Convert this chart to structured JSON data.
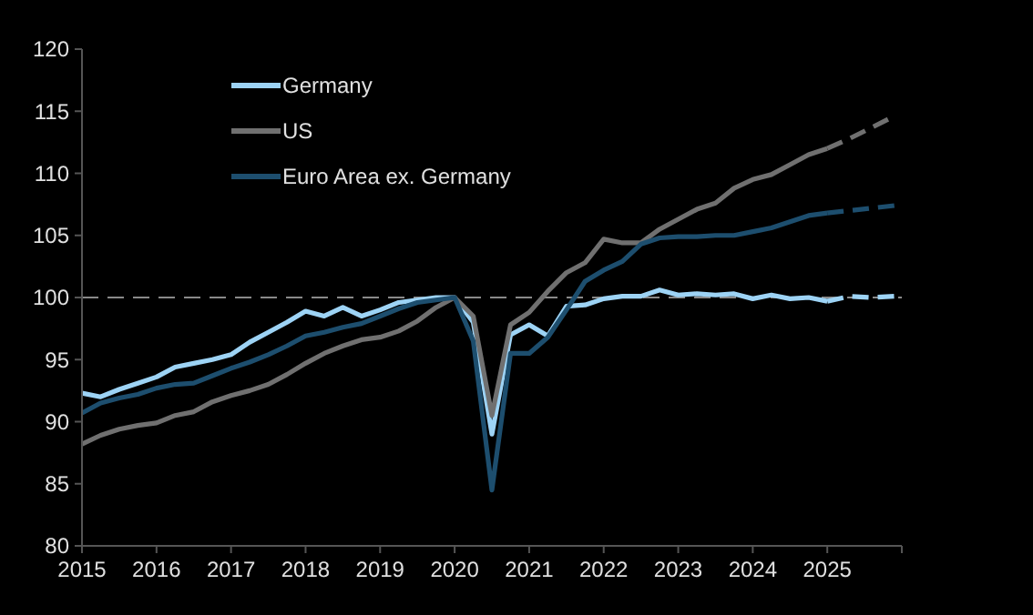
{
  "chart_data": {
    "type": "line",
    "xlim": [
      2015,
      2026
    ],
    "xticks": [
      2015,
      2016,
      2017,
      2018,
      2019,
      2020,
      2021,
      2022,
      2023,
      2024,
      2025
    ],
    "ylim": [
      80,
      120
    ],
    "yticks": [
      80,
      85,
      90,
      95,
      100,
      105,
      110,
      115,
      120
    ],
    "legend": "top left",
    "grid": false,
    "line_style": "solid",
    "ref_lines": [
      {
        "axis": "y",
        "value": 100,
        "color": "#8a8a8a",
        "line_style": "dashed"
      }
    ],
    "series": [
      {
        "name": "Germany",
        "color": "#9dd3f5",
        "x": [
          2015,
          2015.25,
          2015.5,
          2015.75,
          2016,
          2016.25,
          2016.5,
          2016.75,
          2017,
          2017.25,
          2017.5,
          2017.75,
          2018,
          2018.25,
          2018.5,
          2018.75,
          2019,
          2019.25,
          2019.5,
          2019.75,
          2020,
          2020.25,
          2020.5,
          2020.75,
          2021,
          2021.25,
          2021.5,
          2021.75,
          2022,
          2022.25,
          2022.5,
          2022.75,
          2023,
          2023.25,
          2023.5,
          2023.75,
          2024,
          2024.25,
          2024.5,
          2024.75,
          2025
        ],
        "values": [
          92.3,
          92.0,
          92.6,
          93.1,
          93.6,
          94.4,
          94.7,
          95.0,
          95.4,
          96.4,
          97.2,
          98.0,
          98.9,
          98.5,
          99.2,
          98.5,
          99.0,
          99.6,
          99.8,
          100,
          100,
          98.0,
          89.0,
          97.0,
          97.8,
          96.9,
          99.3,
          99.4,
          99.9,
          100.1,
          100.1,
          100.6,
          100.2,
          100.3,
          100.2,
          100.3,
          99.9,
          100.2,
          99.9,
          100.0,
          99.7
        ]
      },
      {
        "name": "US",
        "color": "#707070",
        "x": [
          2015,
          2015.25,
          2015.5,
          2015.75,
          2016,
          2016.25,
          2016.5,
          2016.75,
          2017,
          2017.25,
          2017.5,
          2017.75,
          2018,
          2018.25,
          2018.5,
          2018.75,
          2019,
          2019.25,
          2019.5,
          2019.75,
          2020,
          2020.25,
          2020.5,
          2020.75,
          2021,
          2021.25,
          2021.5,
          2021.75,
          2022,
          2022.25,
          2022.5,
          2022.75,
          2023,
          2023.25,
          2023.5,
          2023.75,
          2024,
          2024.25,
          2024.5,
          2024.75,
          2025
        ],
        "values": [
          88.2,
          88.9,
          89.4,
          89.7,
          89.9,
          90.5,
          90.8,
          91.6,
          92.1,
          92.5,
          93.0,
          93.8,
          94.7,
          95.5,
          96.1,
          96.6,
          96.8,
          97.3,
          98.1,
          99.2,
          100.0,
          98.5,
          90.5,
          97.8,
          98.8,
          100.5,
          102.0,
          102.8,
          104.7,
          104.4,
          104.4,
          105.5,
          106.3,
          107.1,
          107.6,
          108.8,
          109.5,
          109.9,
          110.7,
          111.5,
          112.0
        ]
      },
      {
        "name": "Euro Area ex. Germany",
        "color": "#1d4e6e",
        "x": [
          2015,
          2015.25,
          2015.5,
          2015.75,
          2016,
          2016.25,
          2016.5,
          2016.75,
          2017,
          2017.25,
          2017.5,
          2017.75,
          2018,
          2018.25,
          2018.5,
          2018.75,
          2019,
          2019.25,
          2019.5,
          2019.75,
          2020,
          2020.25,
          2020.5,
          2020.75,
          2021,
          2021.25,
          2021.5,
          2021.75,
          2022,
          2022.25,
          2022.5,
          2022.75,
          2023,
          2023.25,
          2023.5,
          2023.75,
          2024,
          2024.25,
          2024.5,
          2024.75,
          2025
        ],
        "values": [
          90.7,
          91.5,
          91.9,
          92.2,
          92.7,
          93.0,
          93.1,
          93.7,
          94.3,
          94.8,
          95.4,
          96.1,
          96.9,
          97.2,
          97.6,
          97.9,
          98.5,
          99.1,
          99.6,
          99.8,
          100,
          96.5,
          84.5,
          95.5,
          95.5,
          96.8,
          99.0,
          101.3,
          102.2,
          102.9,
          104.3,
          104.8,
          104.9,
          104.9,
          105.0,
          105.0,
          105.3,
          105.6,
          106.1,
          106.6,
          106.8
        ]
      },
      {
        "color": "#9dd3f5",
        "line_style": "dashed",
        "x": [
          2025,
          2025.3,
          2025.6,
          2025.9
        ],
        "values": [
          99.7,
          100.1,
          100.0,
          100.1
        ]
      },
      {
        "color": "#707070",
        "line_style": "dashed",
        "x": [
          2025,
          2025.3,
          2025.6,
          2025.9
        ],
        "values": [
          112.0,
          112.8,
          113.7,
          114.6
        ]
      },
      {
        "color": "#1d4e6e",
        "line_style": "dashed",
        "x": [
          2025,
          2025.3,
          2025.6,
          2025.9
        ],
        "values": [
          106.8,
          107.0,
          107.2,
          107.4
        ]
      }
    ]
  }
}
